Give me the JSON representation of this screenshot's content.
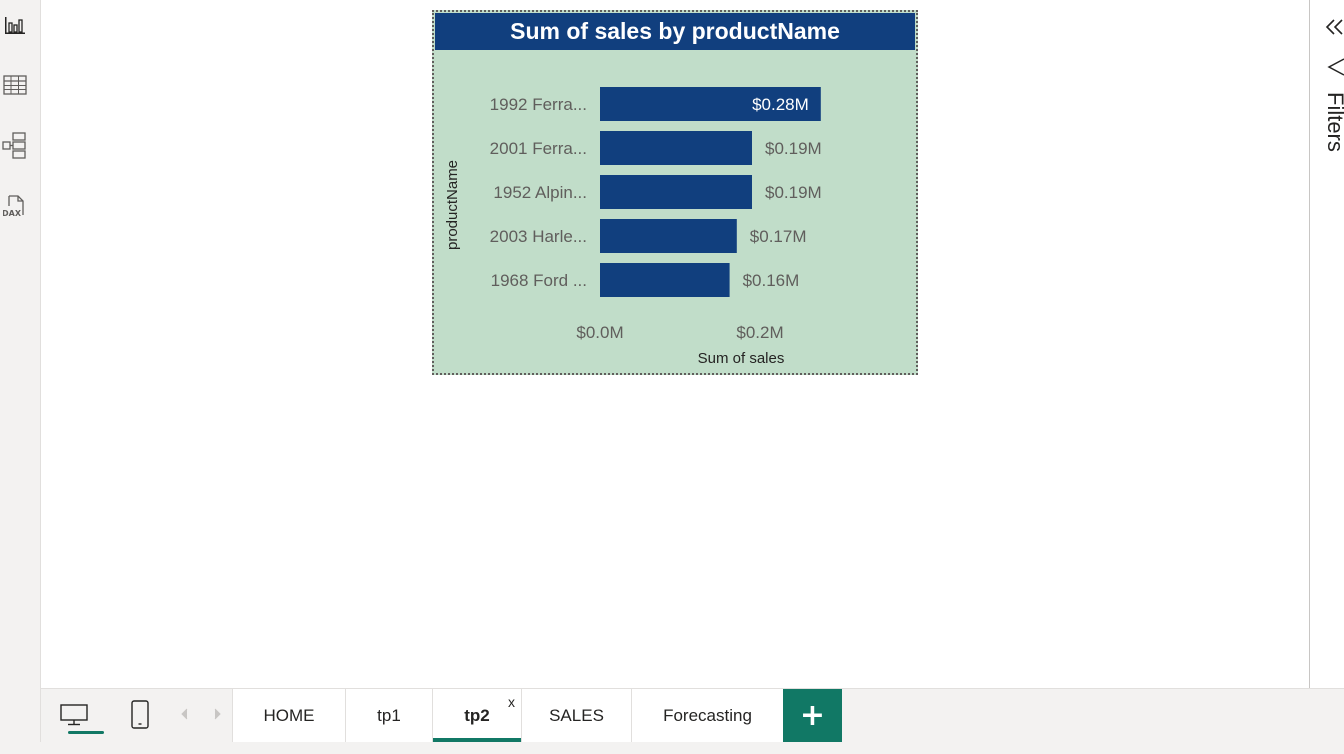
{
  "left_rail": {
    "items": [
      {
        "name": "report-view",
        "icon": "bar-chart-icon"
      },
      {
        "name": "table-view",
        "icon": "table-grid-icon"
      },
      {
        "name": "model-view",
        "icon": "model-diagram-icon"
      },
      {
        "name": "dax-query-view",
        "icon": "dax-file-icon",
        "icon_text": "DAX"
      }
    ]
  },
  "visual": {
    "title": "Sum of sales by productName"
  },
  "chart_data": {
    "type": "bar",
    "orientation": "horizontal",
    "title": "Sum of sales by productName",
    "xlabel": "Sum of sales",
    "ylabel": "productName",
    "categories": [
      "1992 Ferra...",
      "2001 Ferra...",
      "1952 Alpin...",
      "2003 Harle...",
      "1968 Ford ..."
    ],
    "values": [
      0.276,
      0.19,
      0.19,
      0.171,
      0.162
    ],
    "data_labels": [
      "$0.28M",
      "$0.19M",
      "$0.19M",
      "$0.17M",
      "$0.16M"
    ],
    "x_ticks": [
      0,
      0.2
    ],
    "x_tick_labels": [
      "$0.0M",
      "$0.2M"
    ],
    "xlim": [
      0,
      0.4
    ],
    "bar_color": "#113f7e",
    "background_color": "#c1ddc9",
    "grid": false
  },
  "filters_pane": {
    "label": "Filters",
    "collapse_icon": "double-chevron-left-icon",
    "filter_icon": "funnel-icon"
  },
  "tabbar": {
    "desktop_icon": "desktop-monitor-icon",
    "mobile_icon": "mobile-phone-icon",
    "tabs": [
      {
        "label": "HOME",
        "active": false
      },
      {
        "label": "tp1",
        "active": false
      },
      {
        "label": "tp2",
        "active": true,
        "close": "x"
      },
      {
        "label": "SALES",
        "active": false
      },
      {
        "label": "Forecasting",
        "active": false
      }
    ],
    "add_label": "+",
    "accent": "#117865"
  }
}
